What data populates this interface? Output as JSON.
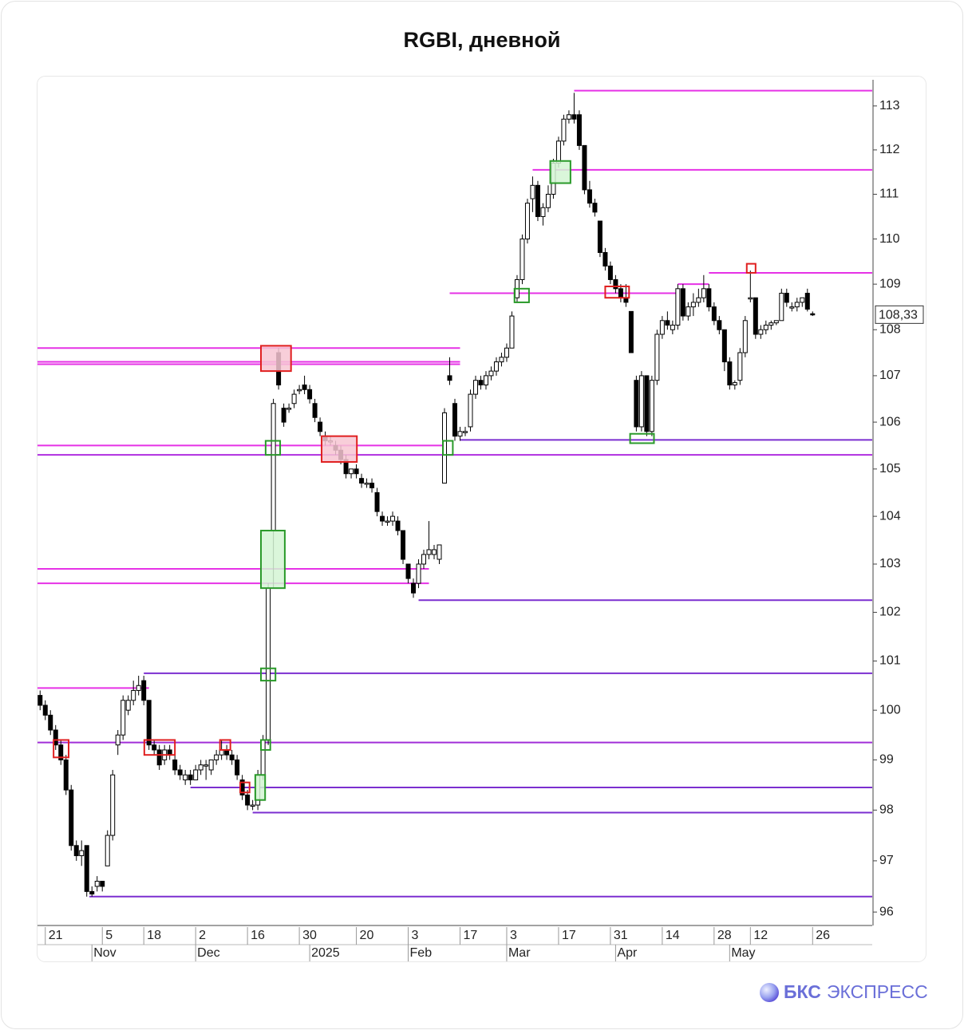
{
  "chart_data": {
    "type": "candlestick",
    "title": "RGBI, дневной",
    "log_scale": true,
    "ylim": [
      95.77,
      113.6
    ],
    "yticks": [
      96,
      97,
      98,
      99,
      100,
      101,
      102,
      103,
      104,
      105,
      106,
      107,
      108,
      109,
      110,
      111,
      112,
      113
    ],
    "xlim": [
      -0.5,
      160.5
    ],
    "xticks": [
      {
        "value": 1,
        "label": "21"
      },
      {
        "value": 12,
        "label": "5"
      },
      {
        "value": 20,
        "label": "18"
      },
      {
        "value": 30,
        "label": "2"
      },
      {
        "value": 40,
        "label": "16"
      },
      {
        "value": 50,
        "label": "30"
      },
      {
        "value": 61,
        "label": "20"
      },
      {
        "value": 71,
        "label": "3"
      },
      {
        "value": 81,
        "label": "17"
      },
      {
        "value": 90,
        "label": "3"
      },
      {
        "value": 100,
        "label": "17"
      },
      {
        "value": 110,
        "label": "31"
      },
      {
        "value": 120,
        "label": "14"
      },
      {
        "value": 130,
        "label": "28"
      },
      {
        "value": 137,
        "label": "12"
      },
      {
        "value": 149,
        "label": "26"
      }
    ],
    "month_ticks": [
      {
        "value": 10,
        "label": "Nov"
      },
      {
        "value": 30,
        "label": "Dec"
      },
      {
        "value": 52,
        "label": "2025"
      },
      {
        "value": 71,
        "label": "Feb"
      },
      {
        "value": 90,
        "label": "Mar"
      },
      {
        "value": 111,
        "label": "Apr"
      },
      {
        "value": 133,
        "label": "May"
      }
    ],
    "x": [
      0,
      1,
      2,
      3,
      4,
      5,
      6,
      7,
      8,
      9,
      10,
      11,
      12,
      13,
      14,
      15,
      16,
      17,
      18,
      19,
      20,
      21,
      22,
      23,
      24,
      25,
      26,
      27,
      28,
      29,
      30,
      31,
      32,
      33,
      34,
      35,
      36,
      37,
      38,
      39,
      40,
      41,
      42,
      43,
      44,
      45,
      46,
      47,
      48,
      49,
      50,
      51,
      52,
      53,
      54,
      55,
      56,
      57,
      58,
      59,
      60,
      61,
      62,
      63,
      64,
      65,
      66,
      67,
      68,
      69,
      70,
      71,
      72,
      73,
      74,
      75,
      76,
      77,
      78,
      79,
      80,
      81,
      82,
      83,
      84,
      85,
      86,
      87,
      88,
      89,
      90,
      91,
      92,
      93,
      94,
      95,
      96,
      97,
      98,
      99,
      100,
      101,
      102,
      103,
      104,
      105,
      106,
      107,
      108,
      109,
      110,
      111,
      112,
      113,
      114,
      115,
      116,
      117,
      118,
      119,
      120,
      121,
      122,
      123,
      124,
      125,
      126,
      127,
      128,
      129,
      130,
      131,
      132,
      133,
      134,
      135,
      136,
      137,
      138,
      139,
      140,
      141,
      142,
      143,
      144,
      145,
      146,
      147,
      148,
      149
    ],
    "open": [
      100.3,
      100.1,
      99.9,
      99.6,
      99.3,
      99.0,
      98.4,
      97.3,
      97.1,
      97.3,
      96.4,
      96.5,
      96.6,
      96.9,
      97.5,
      99.3,
      99.5,
      100.0,
      100.2,
      100.4,
      100.6,
      100.2,
      99.3,
      99.2,
      99.0,
      99.2,
      99.0,
      98.8,
      98.6,
      98.7,
      98.6,
      98.8,
      98.9,
      98.8,
      99.0,
      99.1,
      99.2,
      99.1,
      99.0,
      98.6,
      98.3,
      98.1,
      98.1,
      98.7,
      99.4,
      103.7,
      107.5,
      106.3,
      106.3,
      106.4,
      106.7,
      106.8,
      106.7,
      106.4,
      106.0,
      105.7,
      105.6,
      105.5,
      105.4,
      105.2,
      104.9,
      105.0,
      104.8,
      104.7,
      104.7,
      104.5,
      104.0,
      103.9,
      103.9,
      103.9,
      103.7,
      103.0,
      102.6,
      102.6,
      103.0,
      103.2,
      103.2,
      103.1,
      104.7,
      107.0,
      106.4,
      105.7,
      105.8,
      105.9,
      106.6,
      106.9,
      106.8,
      107.0,
      107.1,
      107.3,
      107.4,
      107.6,
      108.7,
      109.1,
      110.0,
      110.9,
      111.2,
      110.5,
      110.7,
      111.0,
      111.7,
      112.2,
      112.7,
      112.8,
      112.8,
      112.1,
      111.1,
      110.8,
      110.4,
      109.7,
      109.4,
      109.1,
      108.9,
      108.7,
      108.4,
      106.9,
      105.9,
      107.0,
      105.8,
      106.9,
      107.9,
      108.2,
      108.0,
      108.1,
      108.9,
      108.3,
      108.5,
      108.6,
      108.7,
      108.9,
      108.5,
      108.2,
      108.0,
      107.3,
      106.8,
      106.9,
      107.5,
      108.7,
      108.7,
      107.9,
      108.0,
      108.1,
      108.15,
      108.2,
      108.8,
      108.5,
      108.5,
      108.6,
      108.8,
      108.35
    ],
    "high": [
      100.4,
      100.2,
      100.0,
      99.7,
      99.4,
      99.1,
      98.5,
      97.4,
      97.4,
      97.3,
      96.5,
      96.7,
      96.6,
      97.6,
      98.8,
      99.6,
      100.3,
      100.3,
      100.6,
      100.7,
      100.7,
      100.2,
      99.4,
      99.3,
      99.3,
      99.3,
      99.1,
      98.9,
      98.8,
      98.8,
      98.9,
      99.0,
      99.0,
      99.0,
      99.2,
      99.4,
      99.3,
      99.2,
      99.1,
      98.7,
      98.4,
      98.2,
      98.8,
      99.5,
      102.6,
      106.5,
      107.6,
      106.4,
      106.4,
      106.7,
      106.8,
      107.0,
      106.8,
      106.5,
      106.1,
      105.8,
      105.7,
      105.6,
      105.5,
      105.3,
      105.0,
      105.1,
      104.9,
      104.8,
      104.8,
      104.6,
      104.1,
      104.0,
      104.1,
      104.0,
      103.7,
      103.0,
      102.7,
      103.1,
      103.3,
      103.9,
      103.4,
      103.4,
      106.3,
      107.4,
      106.5,
      105.9,
      105.9,
      106.7,
      107.0,
      107.0,
      107.1,
      107.2,
      107.4,
      107.5,
      107.7,
      108.4,
      109.2,
      110.1,
      110.9,
      111.4,
      111.3,
      110.8,
      111.2,
      111.8,
      112.3,
      112.8,
      112.9,
      113.3,
      112.9,
      112.1,
      111.3,
      110.9,
      110.4,
      109.8,
      109.5,
      109.2,
      109.0,
      109.0,
      108.4,
      107.0,
      107.1,
      107.0,
      107.0,
      108.0,
      108.3,
      108.4,
      108.2,
      109.0,
      109.0,
      108.6,
      108.8,
      108.9,
      109.2,
      109.0,
      108.6,
      108.3,
      108.0,
      107.4,
      106.9,
      107.6,
      108.3,
      109.3,
      108.7,
      108.1,
      108.2,
      108.2,
      108.2,
      108.9,
      108.9,
      108.6,
      108.7,
      108.7,
      108.9,
      108.4
    ],
    "low": [
      100.0,
      99.8,
      99.5,
      99.2,
      98.9,
      98.3,
      97.2,
      97.0,
      96.9,
      96.3,
      96.3,
      96.4,
      96.4,
      96.9,
      97.4,
      99.1,
      99.4,
      99.9,
      100.1,
      100.3,
      100.1,
      99.2,
      99.1,
      98.8,
      98.9,
      99.0,
      98.7,
      98.6,
      98.5,
      98.5,
      98.6,
      98.7,
      98.6,
      98.7,
      98.9,
      99.0,
      99.0,
      98.9,
      98.6,
      98.2,
      98.0,
      98.0,
      98.0,
      98.6,
      99.3,
      102.5,
      106.7,
      105.9,
      106.2,
      106.3,
      106.6,
      106.6,
      106.4,
      106.0,
      105.7,
      105.5,
      105.5,
      105.3,
      105.1,
      104.8,
      104.8,
      104.8,
      104.6,
      104.6,
      104.5,
      104.0,
      103.8,
      103.8,
      103.8,
      103.6,
      103.0,
      102.6,
      102.3,
      102.5,
      102.9,
      103.1,
      103.1,
      103.0,
      104.7,
      106.8,
      105.6,
      105.6,
      105.7,
      105.8,
      106.5,
      106.7,
      106.7,
      106.9,
      107.0,
      107.2,
      107.3,
      107.6,
      108.6,
      109.0,
      109.9,
      110.6,
      110.4,
      110.3,
      110.6,
      110.9,
      111.6,
      112.1,
      112.6,
      112.6,
      112.0,
      111.0,
      110.7,
      110.5,
      109.6,
      109.3,
      109.0,
      108.8,
      108.6,
      108.5,
      107.5,
      105.8,
      105.8,
      105.7,
      105.7,
      106.8,
      107.8,
      108.0,
      107.9,
      108.0,
      108.2,
      108.2,
      108.3,
      108.5,
      108.6,
      108.4,
      108.1,
      107.9,
      107.1,
      106.7,
      106.7,
      106.8,
      107.4,
      108.6,
      107.8,
      107.8,
      107.9,
      108.0,
      108.1,
      108.2,
      108.5,
      108.4,
      108.4,
      108.5,
      108.4,
      108.3
    ],
    "close": [
      100.1,
      99.9,
      99.6,
      99.3,
      99.0,
      98.4,
      97.3,
      97.1,
      97.2,
      96.4,
      96.35,
      96.6,
      96.5,
      97.5,
      98.7,
      99.5,
      100.2,
      100.2,
      100.4,
      100.5,
      100.2,
      99.3,
      99.2,
      98.9,
      99.2,
      99.1,
      98.8,
      98.7,
      98.7,
      98.6,
      98.8,
      98.9,
      98.9,
      99.0,
      99.1,
      99.2,
      99.1,
      99.0,
      98.7,
      98.3,
      98.1,
      98.1,
      98.7,
      99.4,
      102.5,
      106.4,
      106.8,
      106.0,
      106.3,
      106.6,
      106.7,
      106.7,
      106.5,
      106.1,
      105.8,
      105.6,
      105.6,
      105.4,
      105.2,
      104.9,
      105.0,
      104.9,
      104.7,
      104.7,
      104.6,
      104.1,
      103.9,
      103.9,
      104.0,
      103.7,
      103.1,
      102.7,
      102.4,
      103.0,
      103.2,
      103.3,
      103.3,
      103.4,
      106.2,
      106.9,
      105.7,
      105.8,
      105.8,
      106.6,
      106.9,
      106.8,
      107.0,
      107.1,
      107.3,
      107.4,
      107.6,
      108.3,
      109.1,
      110.0,
      110.8,
      111.2,
      110.5,
      110.7,
      111.0,
      111.7,
      112.2,
      112.7,
      112.8,
      112.7,
      112.1,
      111.1,
      110.8,
      110.6,
      109.7,
      109.4,
      109.1,
      108.9,
      108.7,
      108.6,
      107.5,
      105.9,
      107.0,
      105.8,
      106.9,
      107.9,
      108.2,
      108.1,
      108.1,
      108.9,
      108.3,
      108.5,
      108.6,
      108.7,
      108.9,
      108.5,
      108.2,
      108.0,
      107.3,
      106.8,
      106.85,
      107.5,
      108.2,
      108.7,
      107.9,
      108.0,
      108.1,
      108.15,
      108.2,
      108.8,
      108.6,
      108.5,
      108.6,
      108.7,
      108.45,
      108.33
    ],
    "up_color": "#ffffff",
    "down_color": "#000000",
    "last_price": {
      "value": 108.33,
      "label": "108,33"
    },
    "levels": [
      {
        "price": 113.35,
        "from": 103,
        "to": 160.5,
        "color": "#e632e6"
      },
      {
        "price": 111.55,
        "from": 95,
        "to": 160.5,
        "color": "#e632e6"
      },
      {
        "price": 109.25,
        "from": 129,
        "to": 160.5,
        "color": "#e632e6"
      },
      {
        "price": 109.0,
        "from": 123,
        "to": 129,
        "color": "#e632e6"
      },
      {
        "price": 108.8,
        "from": 79,
        "to": 123,
        "color": "#e632e6"
      },
      {
        "price": 107.6,
        "from": -0.5,
        "to": 81,
        "color": "#e632e6"
      },
      {
        "price": 107.3,
        "from": -0.5,
        "to": 81,
        "color": "#e632e6"
      },
      {
        "price": 107.25,
        "from": -0.5,
        "to": 81,
        "color": "#e632e6"
      },
      {
        "price": 105.5,
        "from": -0.5,
        "to": 78,
        "color": "#e632e6"
      },
      {
        "price": 105.62,
        "from": 81,
        "to": 160.5,
        "color": "#7b2fd0"
      },
      {
        "price": 105.3,
        "from": -0.5,
        "to": 160.5,
        "color": "#b02ee0"
      },
      {
        "price": 102.9,
        "from": -0.5,
        "to": 75,
        "color": "#e632e6"
      },
      {
        "price": 102.6,
        "from": -0.5,
        "to": 75,
        "color": "#e632e6"
      },
      {
        "price": 102.25,
        "from": 73,
        "to": 160.5,
        "color": "#7b2fd0"
      },
      {
        "price": 100.75,
        "from": 20,
        "to": 160.5,
        "color": "#7b2fd0"
      },
      {
        "price": 100.45,
        "from": -0.5,
        "to": 21,
        "color": "#e632e6"
      },
      {
        "price": 99.35,
        "from": -0.5,
        "to": 160.5,
        "color": "#a02ed8"
      },
      {
        "price": 98.45,
        "from": 29,
        "to": 160.5,
        "color": "#7b2fd0"
      },
      {
        "price": 97.95,
        "from": 41,
        "to": 160.5,
        "color": "#7b2fd0"
      },
      {
        "price": 96.3,
        "from": 9.5,
        "to": 160.5,
        "color": "#7b2fd0"
      }
    ],
    "boxes": [
      {
        "x0": 2.6,
        "x1": 5.5,
        "low": 99.05,
        "high": 99.4,
        "color": "#e02020"
      },
      {
        "x0": 20.1,
        "x1": 26,
        "low": 99.1,
        "high": 99.4,
        "color": "#e02020"
      },
      {
        "x0": 34.7,
        "x1": 36.7,
        "low": 99.2,
        "high": 99.4,
        "color": "#e02020"
      },
      {
        "x0": 38.6,
        "x1": 40.4,
        "low": 98.35,
        "high": 98.55,
        "color": "#e02020"
      },
      {
        "x0": 42.6,
        "x1": 48.4,
        "low": 107.1,
        "high": 107.65,
        "color": "#e02020",
        "fill": "#f7c6d2"
      },
      {
        "x0": 54.3,
        "x1": 61.1,
        "low": 105.15,
        "high": 105.7,
        "color": "#e02020",
        "fill": "#f7c6d2"
      },
      {
        "x0": 109,
        "x1": 113.6,
        "low": 108.7,
        "high": 108.95,
        "color": "#e02020"
      },
      {
        "x0": 136.3,
        "x1": 138,
        "low": 109.25,
        "high": 109.45,
        "color": "#e02020"
      },
      {
        "x0": 42.6,
        "x1": 47.2,
        "low": 102.5,
        "high": 103.7,
        "color": "#2a9a2a",
        "fill": "#d4f5d4"
      },
      {
        "x0": 43.5,
        "x1": 46.3,
        "low": 105.3,
        "high": 105.6,
        "color": "#2a9a2a"
      },
      {
        "x0": 42.6,
        "x1": 45.4,
        "low": 100.6,
        "high": 100.85,
        "color": "#2a9a2a"
      },
      {
        "x0": 42.6,
        "x1": 44.4,
        "low": 99.2,
        "high": 99.4,
        "color": "#2a9a2a"
      },
      {
        "x0": 41.5,
        "x1": 43.4,
        "low": 98.2,
        "high": 98.7,
        "color": "#2a9a2a",
        "fill": "#d4f5d4"
      },
      {
        "x0": 77.7,
        "x1": 79.6,
        "low": 105.3,
        "high": 105.6,
        "color": "#2a9a2a"
      },
      {
        "x0": 91.5,
        "x1": 94.3,
        "low": 108.6,
        "high": 108.9,
        "color": "#2a9a2a"
      },
      {
        "x0": 98.4,
        "x1": 102.3,
        "low": 111.25,
        "high": 111.75,
        "color": "#2a9a2a",
        "fill": "#d4f5d4"
      },
      {
        "x0": 113.8,
        "x1": 118.4,
        "low": 105.55,
        "high": 105.75,
        "color": "#2a9a2a"
      }
    ]
  },
  "logo": {
    "brand": "БКС",
    "product": "ЭКСПРЕСС"
  }
}
